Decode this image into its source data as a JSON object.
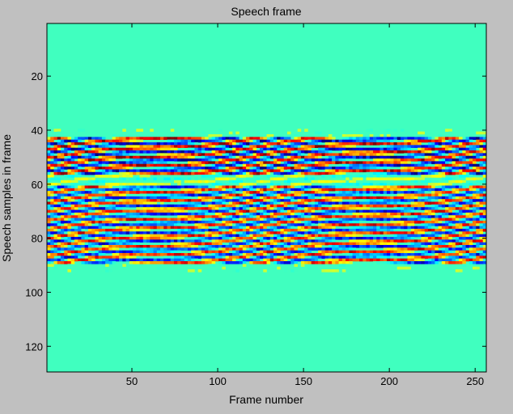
{
  "chart_data": {
    "type": "heatmap",
    "title": "Speech frame",
    "xlabel": "Frame number",
    "ylabel": "Speech samples in frame",
    "xlim": [
      0.5,
      256.5
    ],
    "ylim": [
      0.5,
      129.5
    ],
    "y_reversed": true,
    "xticks": [
      50,
      100,
      150,
      200,
      250
    ],
    "yticks": [
      20,
      40,
      60,
      80,
      100,
      120
    ],
    "colormap": "jet",
    "background_value_color": "#40ffbf",
    "bands": [
      {
        "rows": [
          43,
          56
        ],
        "description": "strong alternating red/blue striations"
      },
      {
        "rows": [
          61,
          91
        ],
        "description": "moderate alternating red/blue striations"
      }
    ]
  }
}
